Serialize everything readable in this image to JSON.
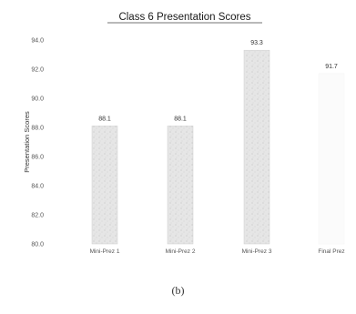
{
  "caption": "(b)",
  "colors": {
    "bar_fill": "#e3e3e3",
    "bar_stroke": "#cfcfcf",
    "title_underline": "#444444"
  },
  "chart_data": {
    "type": "bar",
    "title": "Class 6 Presentation Scores",
    "xlabel": "",
    "ylabel": "Presentation Scores",
    "categories": [
      "Mini-Prez 1",
      "Mini-Prez 2",
      "Mini-Prez 3",
      "Final Prez"
    ],
    "values": [
      88.1,
      88.1,
      93.3,
      91.7
    ],
    "data_labels": [
      "88.1",
      "88.1",
      "93.3",
      "91.7"
    ],
    "ylim": [
      80,
      94
    ],
    "yticks": [
      "80.0",
      "82.0",
      "84.0",
      "86.0",
      "88.0",
      "90.0",
      "92.0",
      "94.0"
    ],
    "grid": false,
    "legend": "none"
  }
}
